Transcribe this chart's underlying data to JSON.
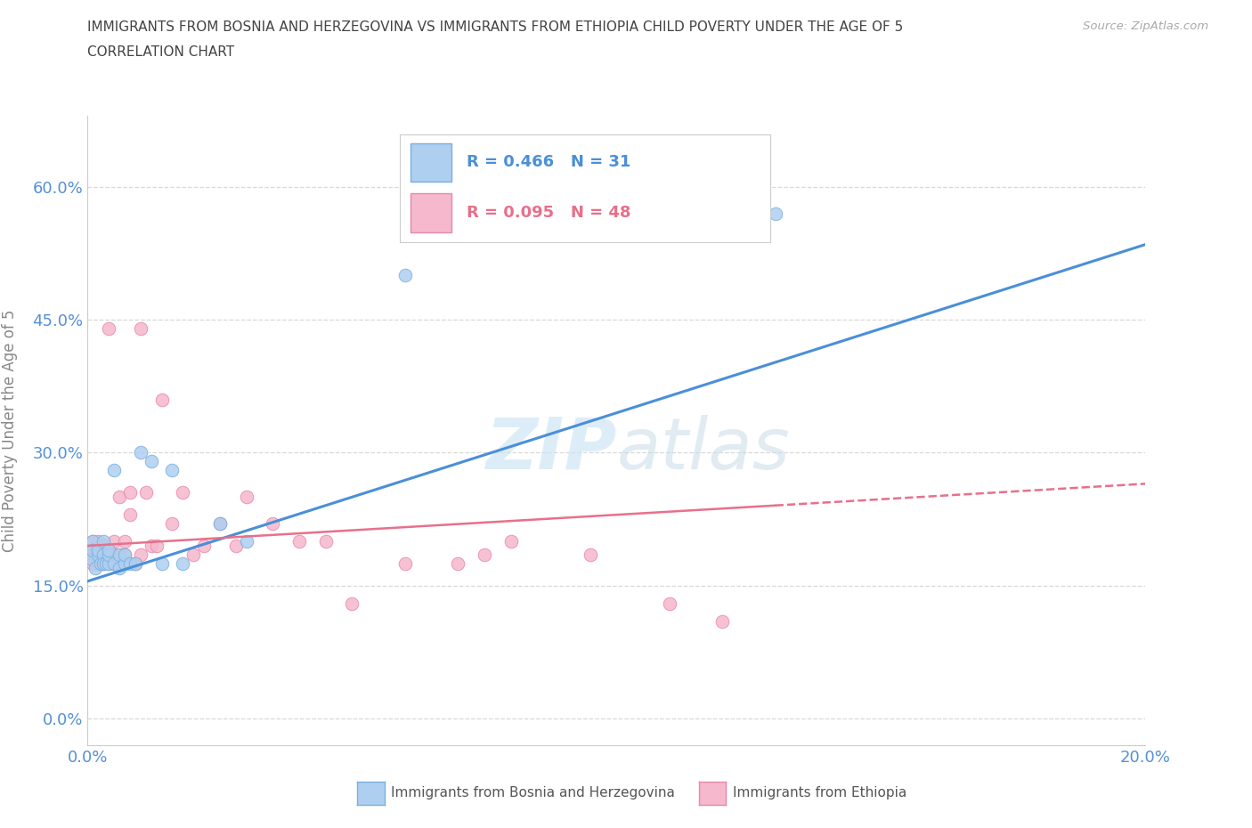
{
  "title_line1": "IMMIGRANTS FROM BOSNIA AND HERZEGOVINA VS IMMIGRANTS FROM ETHIOPIA CHILD POVERTY UNDER THE AGE OF 5",
  "title_line2": "CORRELATION CHART",
  "source": "Source: ZipAtlas.com",
  "ylabel": "Child Poverty Under the Age of 5",
  "xlim": [
    0.0,
    0.2
  ],
  "ylim": [
    -0.03,
    0.68
  ],
  "yticks": [
    0.0,
    0.15,
    0.3,
    0.45,
    0.6
  ],
  "ytick_labels": [
    "0.0%",
    "15.0%",
    "30.0%",
    "45.0%",
    "60.0%"
  ],
  "legend_bosnia_R": "0.466",
  "legend_bosnia_N": "31",
  "legend_ethiopia_R": "0.095",
  "legend_ethiopia_N": "48",
  "bosnia_fill": "#aecff0",
  "bosnia_edge": "#7aafe0",
  "ethiopia_fill": "#f5b8cc",
  "ethiopia_edge": "#e888a8",
  "bosnia_line": "#4a8fd8",
  "ethiopia_line": "#e8708a",
  "tick_color": "#5590d8",
  "bg_color": "#ffffff",
  "grid_color": "#d8d8d8",
  "bosnia_x": [
    0.0008,
    0.001,
    0.001,
    0.0015,
    0.002,
    0.002,
    0.0025,
    0.003,
    0.003,
    0.003,
    0.0035,
    0.004,
    0.004,
    0.004,
    0.005,
    0.005,
    0.006,
    0.006,
    0.007,
    0.007,
    0.008,
    0.009,
    0.01,
    0.012,
    0.014,
    0.016,
    0.018,
    0.025,
    0.03,
    0.06,
    0.13
  ],
  "bosnia_y": [
    0.18,
    0.2,
    0.19,
    0.17,
    0.185,
    0.19,
    0.175,
    0.2,
    0.185,
    0.175,
    0.175,
    0.175,
    0.185,
    0.19,
    0.28,
    0.175,
    0.185,
    0.17,
    0.175,
    0.185,
    0.175,
    0.175,
    0.3,
    0.29,
    0.175,
    0.28,
    0.175,
    0.22,
    0.2,
    0.5,
    0.57
  ],
  "ethiopia_x": [
    0.0005,
    0.001,
    0.001,
    0.001,
    0.0015,
    0.002,
    0.002,
    0.0025,
    0.003,
    0.003,
    0.003,
    0.004,
    0.004,
    0.004,
    0.005,
    0.005,
    0.005,
    0.006,
    0.006,
    0.007,
    0.007,
    0.008,
    0.008,
    0.009,
    0.01,
    0.01,
    0.011,
    0.012,
    0.013,
    0.014,
    0.016,
    0.018,
    0.02,
    0.022,
    0.025,
    0.028,
    0.03,
    0.035,
    0.04,
    0.045,
    0.05,
    0.06,
    0.07,
    0.075,
    0.08,
    0.095,
    0.11,
    0.12
  ],
  "ethiopia_y": [
    0.185,
    0.2,
    0.185,
    0.175,
    0.185,
    0.2,
    0.175,
    0.195,
    0.185,
    0.175,
    0.195,
    0.185,
    0.175,
    0.44,
    0.2,
    0.185,
    0.175,
    0.25,
    0.185,
    0.2,
    0.185,
    0.255,
    0.23,
    0.175,
    0.44,
    0.185,
    0.255,
    0.195,
    0.195,
    0.36,
    0.22,
    0.255,
    0.185,
    0.195,
    0.22,
    0.195,
    0.25,
    0.22,
    0.2,
    0.2,
    0.13,
    0.175,
    0.175,
    0.185,
    0.2,
    0.185,
    0.13,
    0.11
  ],
  "bosnia_line_x0": 0.0,
  "bosnia_line_y0": 0.155,
  "bosnia_line_x1": 0.2,
  "bosnia_line_y1": 0.535,
  "ethiopia_line_x0": 0.0,
  "ethiopia_line_y0": 0.195,
  "ethiopia_line_x1": 0.2,
  "ethiopia_line_y1": 0.265
}
